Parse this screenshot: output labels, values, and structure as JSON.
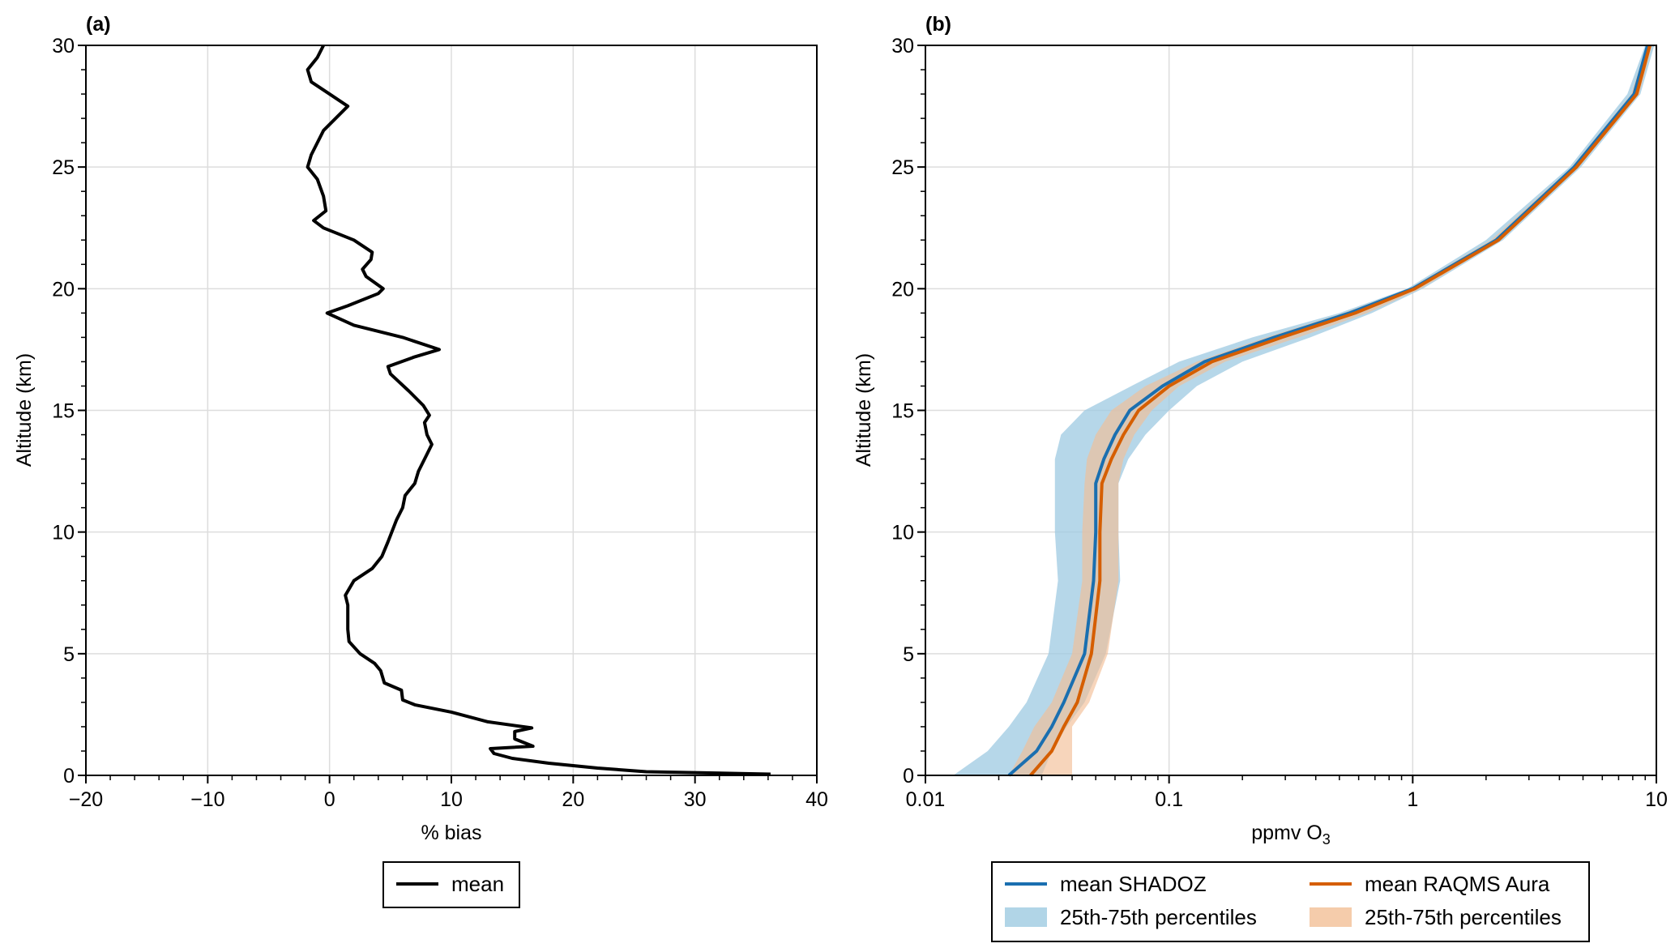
{
  "chart_data": [
    {
      "type": "line",
      "panel_label": "(a)",
      "xlabel": "% bias",
      "ylabel": "Altitude (km)",
      "xlim": [
        -20,
        40
      ],
      "ylim": [
        0,
        30
      ],
      "xticks": [
        "−20",
        "−10",
        "0",
        "10",
        "20",
        "30",
        "40"
      ],
      "xtick_values": [
        -20,
        -10,
        0,
        10,
        20,
        30,
        40
      ],
      "yticks": [
        "0",
        "5",
        "10",
        "15",
        "20",
        "25",
        "30"
      ],
      "ytick_values": [
        0,
        5,
        10,
        15,
        20,
        25,
        30
      ],
      "grid": true,
      "legend": {
        "placement": "below",
        "entries": [
          "mean"
        ]
      },
      "series": [
        {
          "name": "mean",
          "color": "#000000",
          "altitude": [
            0.05,
            0.15,
            0.3,
            0.5,
            0.7,
            0.9,
            1.1,
            1.2,
            1.5,
            1.8,
            1.95,
            2.2,
            2.6,
            2.9,
            3.1,
            3.5,
            3.8,
            4.3,
            4.6,
            5.0,
            5.5,
            6.0,
            7.0,
            7.4,
            8.0,
            8.5,
            9.0,
            9.6,
            10.5,
            11.0,
            11.5,
            12.0,
            12.5,
            13.2,
            13.6,
            14.0,
            14.5,
            14.8,
            15.2,
            15.8,
            16.5,
            16.8,
            17.2,
            17.5,
            18.0,
            18.5,
            19.0,
            19.3,
            19.8,
            20.0,
            20.5,
            20.8,
            21.2,
            21.5,
            22.0,
            22.5,
            22.8,
            23.2,
            23.8,
            24.5,
            25.0,
            25.5,
            26.5,
            27.0,
            27.5,
            28.0,
            28.5,
            29.0,
            29.5,
            30.0
          ],
          "bias": [
            36.2,
            26,
            22,
            18,
            15,
            13.5,
            13.2,
            16.7,
            15.2,
            15.2,
            16.6,
            13,
            10,
            7,
            6,
            5.9,
            4.5,
            4.2,
            3.7,
            2.5,
            1.6,
            1.5,
            1.5,
            1.3,
            2,
            3.5,
            4.3,
            4.8,
            5.5,
            6,
            6.2,
            7,
            7.3,
            8,
            8.4,
            8,
            7.8,
            8.2,
            7.7,
            6.5,
            5,
            4.8,
            7,
            9,
            6,
            2,
            -0.2,
            1.5,
            4,
            4.4,
            3,
            2.7,
            3.4,
            3.5,
            2.0,
            -0.5,
            -1.3,
            -0.3,
            -0.5,
            -1.0,
            -1.8,
            -1.5,
            -0.5,
            0.5,
            1.5,
            0,
            -1.5,
            -1.8,
            -1.0,
            -0.5
          ]
        }
      ]
    },
    {
      "type": "line",
      "panel_label": "(b)",
      "xlabel": "ppmv O",
      "xlabel_sub": "3",
      "ylabel": "Altitude (km)",
      "xscale": "log",
      "xlim": [
        0.01,
        10
      ],
      "ylim": [
        0,
        30
      ],
      "xticks": [
        "0.01",
        "0.1",
        "1",
        "10"
      ],
      "xtick_values": [
        0.01,
        0.1,
        1,
        10
      ],
      "yticks": [
        "0",
        "5",
        "10",
        "15",
        "20",
        "25",
        "30"
      ],
      "ytick_values": [
        0,
        5,
        10,
        15,
        20,
        25,
        30
      ],
      "grid": true,
      "legend": {
        "placement": "below",
        "columns": 2
      },
      "altitude": [
        0,
        1,
        2,
        3,
        5,
        8,
        10,
        12,
        13,
        14,
        15,
        16,
        17,
        18,
        19,
        20,
        22,
        25,
        28,
        30
      ],
      "series": [
        {
          "name": "mean SHADOZ",
          "color": "#1a6fb0",
          "values": [
            0.022,
            0.0286,
            0.033,
            0.037,
            0.045,
            0.049,
            0.05,
            0.05,
            0.054,
            0.06,
            0.069,
            0.094,
            0.14,
            0.27,
            0.55,
            1.0,
            2.2,
            4.6,
            8.1,
            9.2
          ]
        },
        {
          "name": "mean RAQMS Aura",
          "color": "#d55e00",
          "values": [
            0.027,
            0.033,
            0.037,
            0.042,
            0.048,
            0.052,
            0.052,
            0.053,
            0.058,
            0.065,
            0.075,
            0.1,
            0.15,
            0.29,
            0.58,
            1.02,
            2.25,
            4.7,
            8.3,
            9.4
          ]
        }
      ],
      "bands": [
        {
          "name": "25th-75th percentiles",
          "of": "mean SHADOZ",
          "color": "#9ecae1",
          "low": [
            0.013,
            0.018,
            0.022,
            0.026,
            0.032,
            0.035,
            0.034,
            0.034,
            0.034,
            0.036,
            0.045,
            0.07,
            0.11,
            0.22,
            0.5,
            0.95,
            2.0,
            4.4,
            7.6,
            9.0
          ],
          "high": [
            0.03,
            0.033,
            0.038,
            0.045,
            0.055,
            0.063,
            0.062,
            0.062,
            0.068,
            0.08,
            0.1,
            0.13,
            0.2,
            0.38,
            0.68,
            1.1,
            2.35,
            4.9,
            8.6,
            9.8
          ]
        },
        {
          "name": "25th-75th percentiles",
          "of": "mean RAQMS Aura",
          "color": "#f2bf96",
          "low": [
            0.022,
            0.025,
            0.028,
            0.033,
            0.04,
            0.044,
            0.044,
            0.045,
            0.046,
            0.05,
            0.058,
            0.08,
            0.13,
            0.25,
            0.52,
            0.97,
            2.1,
            4.5,
            7.9,
            9.1
          ],
          "high": [
            0.04,
            0.04,
            0.04,
            0.047,
            0.056,
            0.062,
            0.062,
            0.062,
            0.065,
            0.072,
            0.085,
            0.11,
            0.17,
            0.34,
            0.65,
            1.08,
            2.3,
            4.8,
            8.5,
            9.6
          ]
        }
      ]
    }
  ]
}
